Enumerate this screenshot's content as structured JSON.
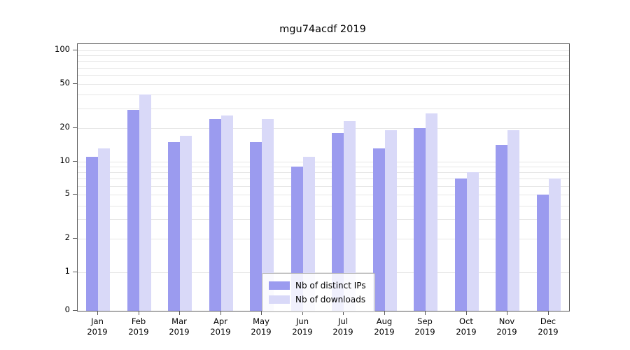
{
  "title": "mgu74acdf 2019",
  "chart_data": {
    "type": "bar",
    "title": "mgu74acdf 2019",
    "yscale": "log",
    "ylim": [
      0,
      114
    ],
    "y_ticks": [
      0,
      1,
      2,
      5,
      10,
      20,
      50,
      100
    ],
    "grid_values": [
      1,
      2,
      3,
      4,
      5,
      6,
      7,
      8,
      9,
      10,
      20,
      30,
      40,
      50,
      60,
      70,
      80,
      90,
      100
    ],
    "grid": true,
    "categories": [
      "Jan 2019",
      "Feb 2019",
      "Mar 2019",
      "Apr 2019",
      "May 2019",
      "Jun 2019",
      "Jul 2019",
      "Aug 2019",
      "Sep 2019",
      "Oct 2019",
      "Nov 2019",
      "Dec 2019"
    ],
    "series": [
      {
        "name": "Nb of distinct IPs",
        "color": "#9b9bef",
        "values": [
          11,
          29,
          15,
          24,
          15,
          9,
          18,
          13,
          20,
          7,
          14,
          5
        ]
      },
      {
        "name": "Nb of downloads",
        "color": "#d9d9f8",
        "values": [
          13,
          40,
          17,
          26,
          24,
          11,
          23,
          19,
          27,
          8,
          19,
          7
        ]
      }
    ],
    "legend": {
      "position": "lower-center-inside",
      "entries": [
        "Nb of distinct IPs",
        "Nb of downloads"
      ]
    }
  }
}
